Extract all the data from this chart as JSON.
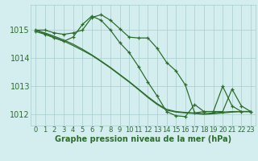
{
  "background_color": "#d4edef",
  "grid_color": "#a8cccc",
  "line_color": "#2d6e2d",
  "marker_color": "#2d6e2d",
  "xlabel": "Graphe pression niveau de la mer (hPa)",
  "xlabel_color": "#2d6e2d",
  "ylabel_values": [
    1012,
    1013,
    1014,
    1015
  ],
  "xlim": [
    -0.5,
    23.5
  ],
  "ylim": [
    1011.6,
    1015.9
  ],
  "xticks": [
    0,
    1,
    2,
    3,
    4,
    5,
    6,
    7,
    8,
    9,
    10,
    11,
    12,
    13,
    14,
    15,
    16,
    17,
    18,
    19,
    20,
    21,
    22,
    23
  ],
  "series": [
    {
      "x": [
        0,
        1,
        2,
        3,
        4,
        5,
        6,
        7,
        8,
        9,
        10,
        11,
        12,
        13,
        14,
        15,
        16,
        17,
        18,
        19,
        20,
        21,
        22,
        23
      ],
      "y": [
        1015.0,
        1015.0,
        1014.9,
        1014.85,
        1014.9,
        1015.0,
        1015.45,
        1015.55,
        1015.35,
        1015.05,
        1014.75,
        1014.72,
        1014.72,
        1014.35,
        1013.85,
        1013.55,
        1013.05,
        1012.05,
        1012.1,
        1012.1,
        1012.1,
        1012.9,
        1012.3,
        1012.1
      ],
      "has_markers": true
    },
    {
      "x": [
        0,
        1,
        2,
        3,
        4,
        5,
        6,
        7,
        8,
        9,
        10,
        11,
        12,
        13,
        14,
        15,
        16,
        17,
        18,
        19,
        20,
        21,
        22,
        23
      ],
      "y": [
        1015.0,
        1014.87,
        1014.74,
        1014.61,
        1014.45,
        1014.28,
        1014.1,
        1013.88,
        1013.65,
        1013.4,
        1013.15,
        1012.88,
        1012.6,
        1012.35,
        1012.15,
        1012.08,
        1012.05,
        1012.03,
        1012.0,
        1012.02,
        1012.05,
        1012.08,
        1012.1,
        1012.1
      ],
      "has_markers": false
    },
    {
      "x": [
        0,
        1,
        2,
        3,
        4,
        5,
        6,
        7,
        8,
        9,
        10,
        11,
        12,
        13,
        14,
        15,
        16,
        17,
        18,
        19,
        20,
        21,
        22,
        23
      ],
      "y": [
        1015.0,
        1014.9,
        1014.78,
        1014.65,
        1014.5,
        1014.32,
        1014.12,
        1013.9,
        1013.67,
        1013.42,
        1013.17,
        1012.9,
        1012.63,
        1012.38,
        1012.18,
        1012.1,
        1012.07,
        1012.05,
        1012.02,
        1012.05,
        1012.08,
        1012.1,
        1012.1,
        1012.1
      ],
      "has_markers": false
    },
    {
      "x": [
        0,
        1,
        2,
        3,
        4,
        5,
        6,
        7,
        8,
        9,
        10,
        11,
        12,
        13,
        14,
        15,
        16,
        17,
        18,
        19,
        20,
        21,
        22,
        23
      ],
      "y": [
        1014.95,
        1014.85,
        1014.72,
        1014.6,
        1014.75,
        1015.2,
        1015.5,
        1015.35,
        1015.0,
        1014.55,
        1014.2,
        1013.7,
        1013.15,
        1012.65,
        1012.1,
        1011.95,
        1011.92,
        1012.35,
        1012.1,
        1012.1,
        1013.0,
        1012.3,
        1012.1,
        1012.1
      ],
      "has_markers": true
    }
  ],
  "font_size_xlabel": 7,
  "font_size_yticks": 7,
  "font_size_xticks": 6,
  "linewidth": 0.9,
  "markersize": 3.5
}
